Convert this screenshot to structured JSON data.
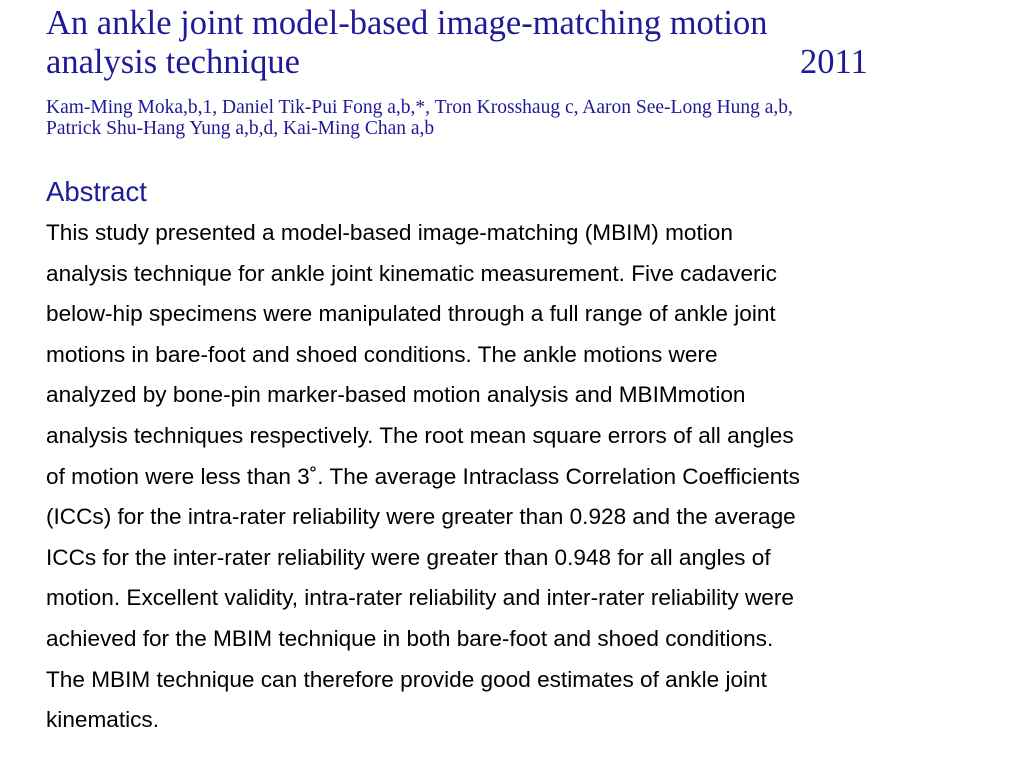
{
  "title": {
    "line1": "An ankle joint model-based image-matching motion",
    "line2": "analysis technique",
    "year": "2011"
  },
  "authors": {
    "line1": "Kam-Ming Moka,b,1, Daniel Tik-Pui Fong a,b,*, Tron Krosshaug c, Aaron See-Long Hung a,b,",
    "line2": "Patrick Shu-Hang Yung a,b,d, Kai-Ming Chan a,b"
  },
  "abstract": {
    "heading": "Abstract",
    "lines": [
      "This study presented a model-based image-matching (MBIM) motion",
      "analysis technique for ankle joint kinematic measurement. Five cadaveric",
      "below-hip specimens were manipulated through a full range of ankle joint",
      "motions in bare-foot and shoed conditions. The ankle motions were",
      "analyzed by bone-pin marker-based motion analysis and MBIMmotion",
      "analysis techniques respectively. The root mean square errors of all angles",
      "of motion were less than 3˚. The average Intraclass Correlation Coefficients",
      "(ICCs) for the intra-rater reliability were greater than 0.928 and the average",
      "ICCs for the inter-rater reliability were greater than 0.948 for all angles of",
      "motion. Excellent validity, intra-rater reliability and inter-rater reliability were",
      "achieved for the MBIM technique in both bare-foot and shoed conditions.",
      "The MBIM technique can therefore provide good estimates of ankle joint",
      "kinematics."
    ]
  },
  "colors": {
    "heading": "#1f1a96",
    "body": "#000000",
    "background": "#ffffff"
  }
}
